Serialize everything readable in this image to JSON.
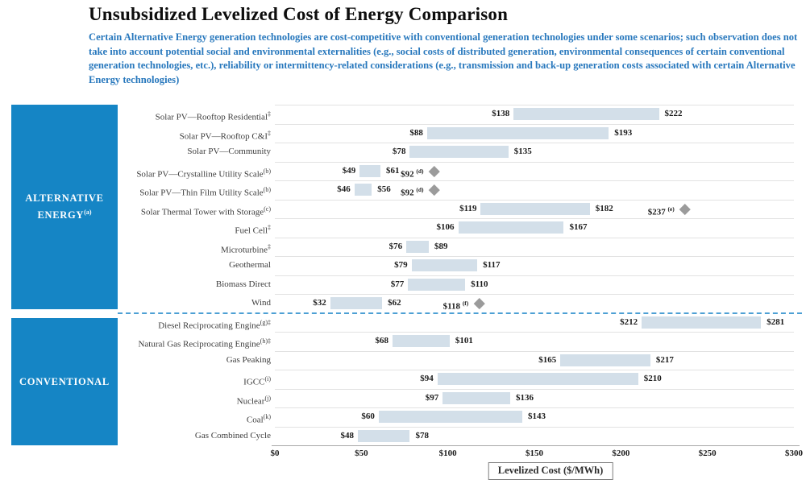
{
  "header": {
    "title": "Unsubsidized Levelized Cost of Energy Comparison",
    "subtitle": "Certain Alternative Energy generation technologies are cost-competitive with conventional generation technologies under some scenarios; such observation does not take into account potential social and environmental externalities (e.g., social costs of distributed generation, environmental consequences of certain conventional generation technologies, etc.), reliability or intermittency-related considerations (e.g., transmission and back-up generation costs associated with certain Alternative Energy technologies)"
  },
  "chart_data": {
    "type": "bar",
    "subtype": "horizontal-range-bars",
    "title": "Unsubsidized Levelized Cost of Energy Comparison",
    "xlabel": "Levelized Cost ($/MWh)",
    "xlim": [
      0,
      300
    ],
    "x_tick_values": [
      0,
      50,
      100,
      150,
      200,
      250,
      300
    ],
    "x_tick_labels": [
      "$0",
      "$50",
      "$100",
      "$150",
      "$200",
      "$250",
      "$300"
    ],
    "value_prefix": "$",
    "grid": "row-separators-only",
    "legend": "none",
    "sections": [
      {
        "label": "ALTERNATIVE ENERGY",
        "label_sup": "(a)",
        "rows": [
          {
            "name": "Solar PV—Rooftop Residential",
            "sup": "‡",
            "min": 138,
            "max": 222
          },
          {
            "name": "Solar PV—Rooftop C&I",
            "sup": "‡",
            "min": 88,
            "max": 193
          },
          {
            "name": "Solar PV—Community",
            "sup": "",
            "min": 78,
            "max": 135
          },
          {
            "name": "Solar PV—Crystalline Utility Scale",
            "sup": "(b)",
            "min": 49,
            "max": 61,
            "marker": {
              "value": 92,
              "sup": "(d)"
            }
          },
          {
            "name": "Solar PV—Thin Film Utility Scale",
            "sup": "(b)",
            "min": 46,
            "max": 56,
            "marker": {
              "value": 92,
              "sup": "(d)"
            }
          },
          {
            "name": "Solar Thermal Tower with Storage",
            "sup": "(c)",
            "min": 119,
            "max": 182,
            "marker": {
              "value": 237,
              "sup": "(e)"
            }
          },
          {
            "name": "Fuel Cell",
            "sup": "‡",
            "min": 106,
            "max": 167
          },
          {
            "name": "Microturbine",
            "sup": "‡",
            "min": 76,
            "max": 89
          },
          {
            "name": "Geothermal",
            "sup": "",
            "min": 79,
            "max": 117
          },
          {
            "name": "Biomass Direct",
            "sup": "",
            "min": 77,
            "max": 110
          },
          {
            "name": "Wind",
            "sup": "",
            "min": 32,
            "max": 62,
            "marker": {
              "value": 118,
              "sup": "(f)"
            }
          }
        ]
      },
      {
        "label": "CONVENTIONAL",
        "label_sup": "",
        "rows": [
          {
            "name": "Diesel Reciprocating Engine",
            "sup": "(g)‡",
            "min": 212,
            "max": 281
          },
          {
            "name": "Natural Gas Reciprocating Engine",
            "sup": "(h)‡",
            "min": 68,
            "max": 101
          },
          {
            "name": "Gas Peaking",
            "sup": "",
            "min": 165,
            "max": 217
          },
          {
            "name": "IGCC",
            "sup": "(i)",
            "min": 94,
            "max": 210
          },
          {
            "name": "Nuclear",
            "sup": "(j)",
            "min": 97,
            "max": 136
          },
          {
            "name": "Coal",
            "sup": "(k)",
            "min": 60,
            "max": 143
          },
          {
            "name": "Gas Combined Cycle",
            "sup": "",
            "min": 48,
            "max": 78
          }
        ]
      }
    ],
    "colors": {
      "bar_fill": "#d3dfe9",
      "sidebar_blue": "#1585c5",
      "subtitle_blue": "#2878bd",
      "marker_gray": "#9b9b9b",
      "divider_blue": "#4da0d4",
      "row_line": "#e2e2e2",
      "axis_line": "#a8a8a8"
    }
  }
}
